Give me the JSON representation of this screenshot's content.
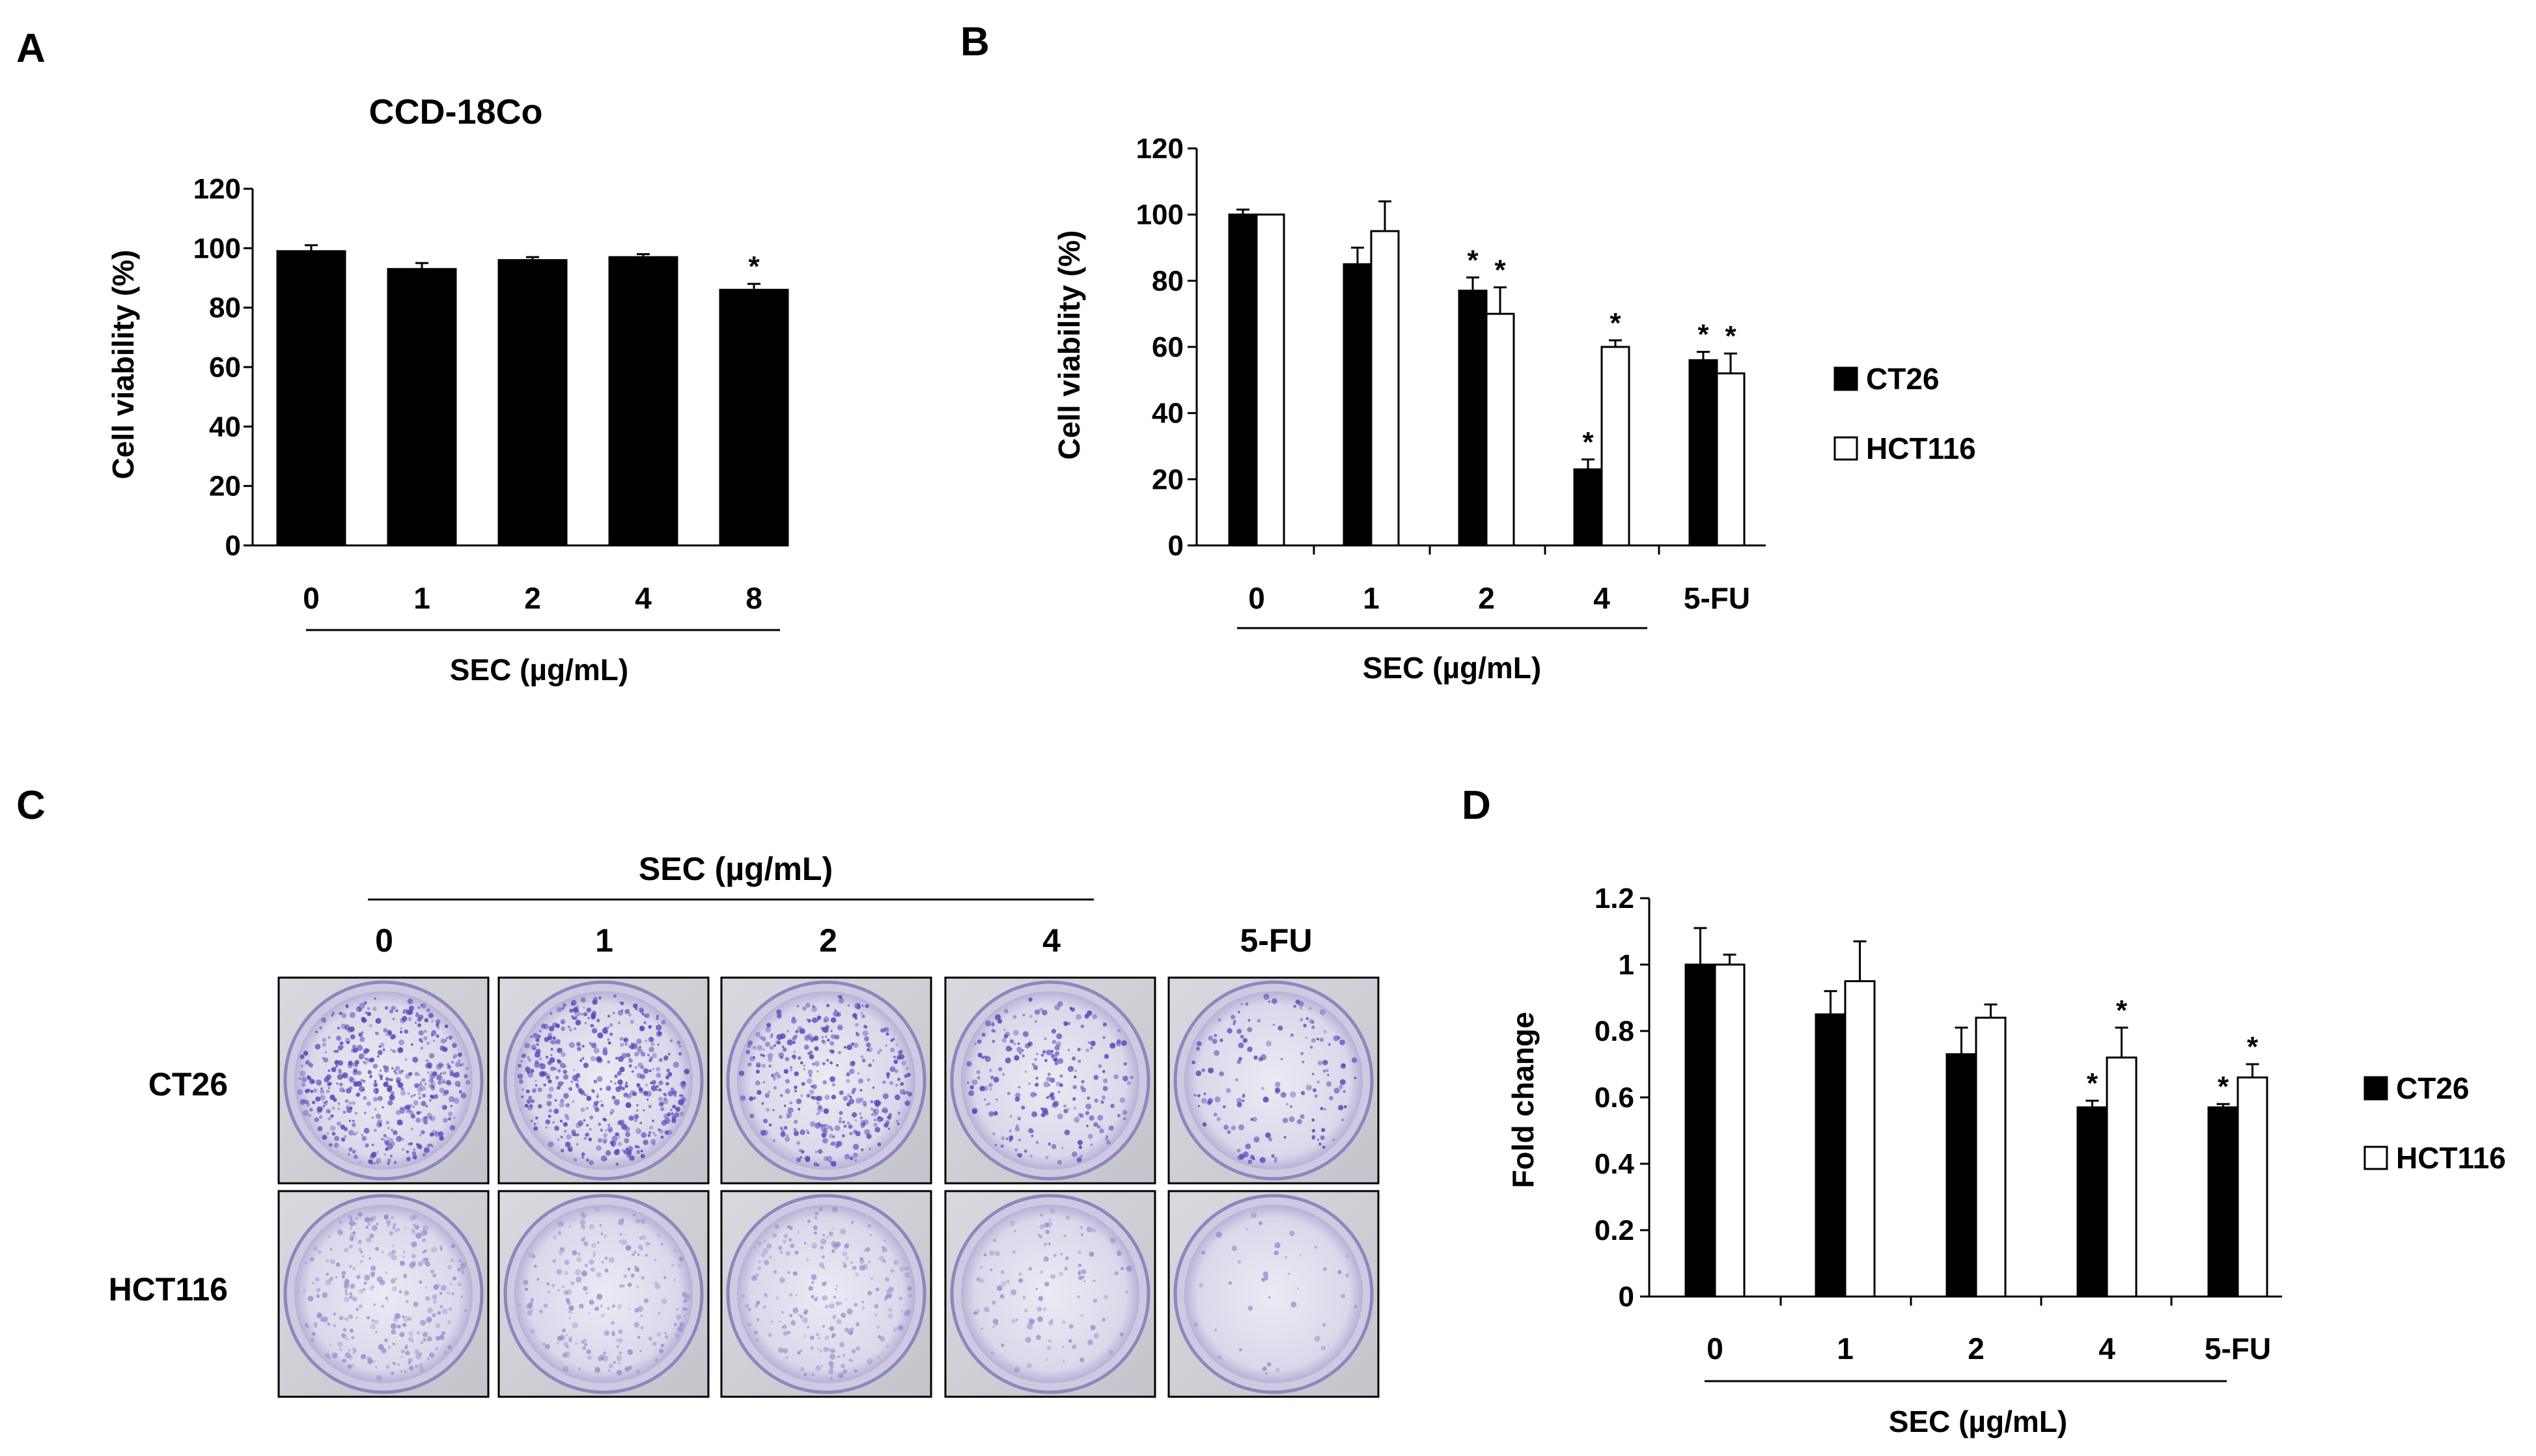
{
  "panels": {
    "A": {
      "letter": "A"
    },
    "B": {
      "letter": "B"
    },
    "C": {
      "letter": "C"
    },
    "D": {
      "letter": "D"
    }
  },
  "chart_data": [
    {
      "panel": "A",
      "type": "bar",
      "title": "CCD-18Co",
      "ylabel": "Cell viability (%)",
      "xlabel": "SEC (µg/mL)",
      "categories": [
        "0",
        "1",
        "2",
        "4",
        "8"
      ],
      "series": [
        {
          "name": "CCD-18Co",
          "color": "#000000",
          "values": [
            99,
            93,
            96,
            97,
            86
          ],
          "errors": [
            2,
            2,
            1,
            1,
            2
          ],
          "sig": [
            false,
            false,
            false,
            false,
            true
          ]
        }
      ],
      "ylim": [
        0,
        120
      ],
      "yticks": [
        "0",
        "20",
        "40",
        "60",
        "80",
        "100",
        "120"
      ],
      "sig_marker": "*"
    },
    {
      "panel": "B",
      "type": "bar",
      "title": "",
      "ylabel": "Cell viability (%)",
      "xlabel": "SEC (µg/mL)",
      "categories": [
        "0",
        "1",
        "2",
        "4",
        "5-FU"
      ],
      "series": [
        {
          "name": "CT26",
          "color": "#000000",
          "values": [
            100,
            85,
            77,
            23,
            56
          ],
          "errors": [
            1.5,
            5,
            4,
            3,
            2.5
          ],
          "sig": [
            false,
            false,
            true,
            true,
            true
          ]
        },
        {
          "name": "HCT116",
          "color": "#ffffff",
          "values": [
            100,
            95,
            70,
            60,
            52
          ],
          "errors": [
            0,
            9,
            8,
            2,
            6
          ],
          "sig": [
            false,
            false,
            true,
            true,
            true
          ]
        }
      ],
      "ylim": [
        0,
        120
      ],
      "yticks": [
        "0",
        "20",
        "40",
        "60",
        "80",
        "100",
        "120"
      ],
      "legend": [
        "CT26",
        "HCT116"
      ],
      "legend_position": "right",
      "sig_marker": "*"
    },
    {
      "panel": "D",
      "type": "bar",
      "title": "",
      "ylabel": "Fold change",
      "xlabel": "SEC (µg/mL)",
      "categories": [
        "0",
        "1",
        "2",
        "4",
        "5-FU"
      ],
      "series": [
        {
          "name": "CT26",
          "color": "#000000",
          "values": [
            1.0,
            0.85,
            0.73,
            0.57,
            0.57
          ],
          "errors": [
            0.11,
            0.07,
            0.08,
            0.02,
            0.01
          ],
          "sig": [
            false,
            false,
            false,
            true,
            true
          ]
        },
        {
          "name": "HCT116",
          "color": "#ffffff",
          "values": [
            1.0,
            0.95,
            0.84,
            0.72,
            0.66
          ],
          "errors": [
            0.03,
            0.12,
            0.04,
            0.09,
            0.04
          ],
          "sig": [
            false,
            false,
            false,
            true,
            true
          ]
        }
      ],
      "ylim": [
        0,
        1.2
      ],
      "yticks": [
        "0",
        "0.2",
        "0.4",
        "0.6",
        "0.8",
        "1",
        "1.2"
      ],
      "legend": [
        "CT26",
        "HCT116"
      ],
      "legend_position": "right",
      "sig_marker": "*"
    }
  ],
  "colony_panel": {
    "header": "SEC (µg/mL)",
    "columns": [
      "0",
      "1",
      "2",
      "4",
      "5-FU"
    ],
    "rows": [
      {
        "label": "CT26",
        "stain": "#5a47b8",
        "density": [
          0.95,
          0.9,
          0.72,
          0.45,
          0.3
        ]
      },
      {
        "label": "HCT116",
        "stain": "#9b8fcf",
        "density": [
          0.55,
          0.4,
          0.42,
          0.22,
          0.08
        ]
      }
    ]
  }
}
